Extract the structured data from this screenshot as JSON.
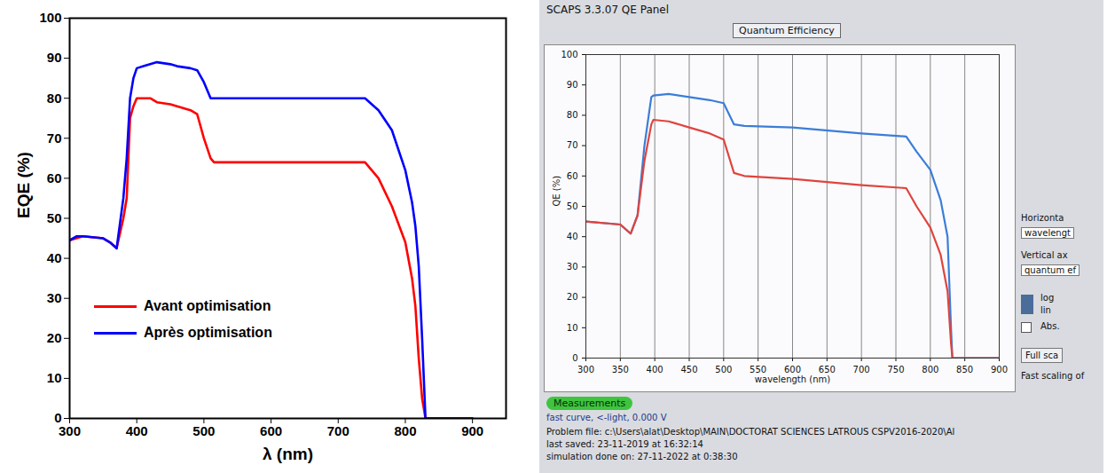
{
  "chart_data": [
    {
      "type": "line",
      "x_label": "λ (nm)",
      "y_label": "EQE (%)",
      "x": [
        300,
        310,
        320,
        350,
        360,
        370,
        380,
        385,
        390,
        395,
        400,
        410,
        420,
        430,
        450,
        460,
        480,
        490,
        500,
        510,
        515,
        600,
        740,
        760,
        780,
        800,
        810,
        815,
        820,
        825,
        830,
        900
      ],
      "series": [
        {
          "name": "Avant optimisation",
          "color": "#ff0000",
          "values": [
            44.5,
            45,
            45.5,
            45,
            44,
            42.5,
            50,
            55,
            75,
            78,
            80,
            80,
            80,
            79,
            78.5,
            78,
            77,
            76,
            70,
            65,
            64,
            64,
            64,
            60,
            53,
            44,
            35,
            28,
            15,
            5,
            0,
            0
          ]
        },
        {
          "name": "Après optimisation",
          "color": "#0000ff",
          "values": [
            44.5,
            45.5,
            45.5,
            45,
            44,
            42.5,
            55,
            65,
            80,
            85,
            87.5,
            88,
            88.5,
            89,
            88.5,
            88,
            87.5,
            87,
            84,
            80,
            80,
            80,
            80,
            77,
            72,
            62,
            54,
            48,
            38,
            20,
            0,
            0
          ]
        }
      ],
      "xlim": [
        300,
        950
      ],
      "xticks": [
        300,
        400,
        500,
        600,
        700,
        800,
        900
      ],
      "ylim": [
        0,
        100
      ],
      "yticks": [
        0,
        10,
        20,
        30,
        40,
        50,
        60,
        70,
        80,
        90,
        100
      ],
      "grid": false,
      "legend": "lower left"
    },
    {
      "type": "line",
      "title": "Quantum Efficiency",
      "x_label": "wavelength (nm)",
      "y_label": "QE (%)",
      "x": [
        300,
        350,
        365,
        375,
        385,
        395,
        398,
        420,
        450,
        480,
        500,
        515,
        530,
        600,
        700,
        765,
        780,
        800,
        815,
        825,
        830,
        832,
        900
      ],
      "series": [
        {
          "color": "#3b7dd8",
          "values": [
            45,
            44,
            41,
            47,
            70,
            86,
            86.5,
            87,
            86,
            85,
            84,
            77,
            76.5,
            76,
            74,
            73,
            68,
            62,
            52,
            40,
            10,
            0,
            0
          ]
        },
        {
          "color": "#e0443e",
          "values": [
            45,
            44,
            41,
            47,
            65,
            77,
            78.5,
            78,
            76,
            74,
            72,
            61,
            60,
            59,
            57,
            56,
            50,
            43,
            34,
            22,
            5,
            0,
            0
          ]
        }
      ],
      "xlim": [
        300,
        900
      ],
      "xticks": [
        300,
        350,
        400,
        450,
        500,
        550,
        600,
        650,
        700,
        750,
        800,
        850,
        900
      ],
      "ylim": [
        0,
        100
      ],
      "yticks": [
        0,
        10,
        20,
        30,
        40,
        50,
        60,
        70,
        80,
        90,
        100
      ],
      "grid": "x",
      "annotations": [
        "SCAPS 3.3.07 QE Panel",
        "Horizonta",
        "wavelengt",
        "Vertical ax",
        "quantum ef",
        "log",
        "lin",
        "Abs.",
        "Full sca",
        "Fast scaling of",
        "Measurements",
        "fast curve, <-light, 0.000 V",
        "Problem file: c:\\Users\\alat\\Desktop\\MAIN\\DOCTORAT SCIENCES LATROUS CSPV2016-2020\\Al",
        "last saved: 23-11-2019 at 16:32:14",
        "simulation done on: 27-11-2022 at 0:38:30"
      ]
    }
  ]
}
